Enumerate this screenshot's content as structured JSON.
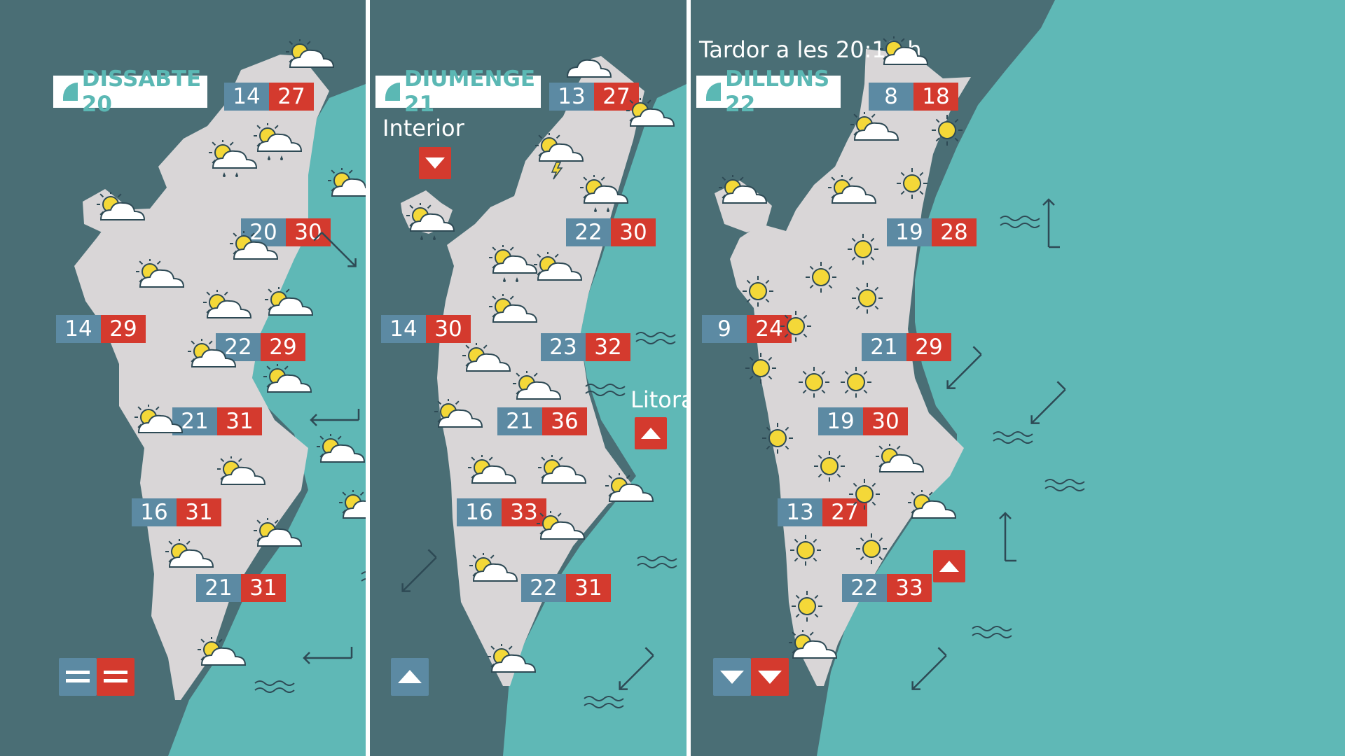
{
  "header": {
    "time_note": "Tardor a les 20:19 h"
  },
  "colors": {
    "sea": "#5fb8b6",
    "land_dark": "#4a6e75",
    "region": "#d9d6d7",
    "min_temp": "#5c8aa3",
    "max_temp": "#d43a2e",
    "label_text": "#5bb8b4"
  },
  "panels": [
    {
      "day_label": "DISSABTE 20",
      "temps": [
        {
          "min": "14",
          "max": "27"
        },
        {
          "min": "20",
          "max": "30"
        },
        {
          "min": "14",
          "max": "29"
        },
        {
          "min": "22",
          "max": "29"
        },
        {
          "min": "21",
          "max": "31"
        },
        {
          "min": "16",
          "max": "31"
        },
        {
          "min": "21",
          "max": "31"
        }
      ],
      "icons": [
        "partly-cloudy-icon",
        "partly-cloudy-icon",
        "partly-cloudy-rain-icon",
        "partly-cloudy-icon",
        "partly-cloudy-icon",
        "partly-cloudy-icon",
        "partly-cloudy-icon",
        "partly-cloudy-icon",
        "partly-cloudy-icon",
        "partly-cloudy-icon",
        "partly-cloudy-icon",
        "partly-cloudy-icon",
        "partly-cloudy-icon",
        "partly-cloudy-icon",
        "partly-cloudy-icon",
        "partly-cloudy-icon"
      ],
      "trend": {
        "min": "equal",
        "max": "equal"
      }
    },
    {
      "day_label": "DIUMENGE 21",
      "interior_label": "Interior",
      "litoral_label": "Litoral",
      "temps": [
        {
          "min": "13",
          "max": "27"
        },
        {
          "min": "22",
          "max": "30"
        },
        {
          "min": "14",
          "max": "30"
        },
        {
          "min": "23",
          "max": "32"
        },
        {
          "min": "21",
          "max": "36"
        },
        {
          "min": "16",
          "max": "33"
        },
        {
          "min": "22",
          "max": "31"
        }
      ],
      "icons": [
        "cloud-icon",
        "partly-cloudy-rain-icon",
        "storm-icon",
        "cloud-rain-icon",
        "partly-cloudy-icon"
      ],
      "interior_trend": "down",
      "litoral_trend": "up",
      "bottom_trend": "up"
    },
    {
      "day_label": "DILLUNS 22",
      "temps": [
        {
          "min": "8",
          "max": "18"
        },
        {
          "min": "19",
          "max": "28"
        },
        {
          "min": "9",
          "max": "24"
        },
        {
          "min": "21",
          "max": "29"
        },
        {
          "min": "19",
          "max": "30"
        },
        {
          "min": "13",
          "max": "27"
        },
        {
          "min": "22",
          "max": "33"
        }
      ],
      "icons": [
        "sun-icon",
        "partly-cloudy-icon"
      ],
      "coast_trend": "up",
      "trend": {
        "min": "down",
        "max": "down"
      }
    }
  ]
}
